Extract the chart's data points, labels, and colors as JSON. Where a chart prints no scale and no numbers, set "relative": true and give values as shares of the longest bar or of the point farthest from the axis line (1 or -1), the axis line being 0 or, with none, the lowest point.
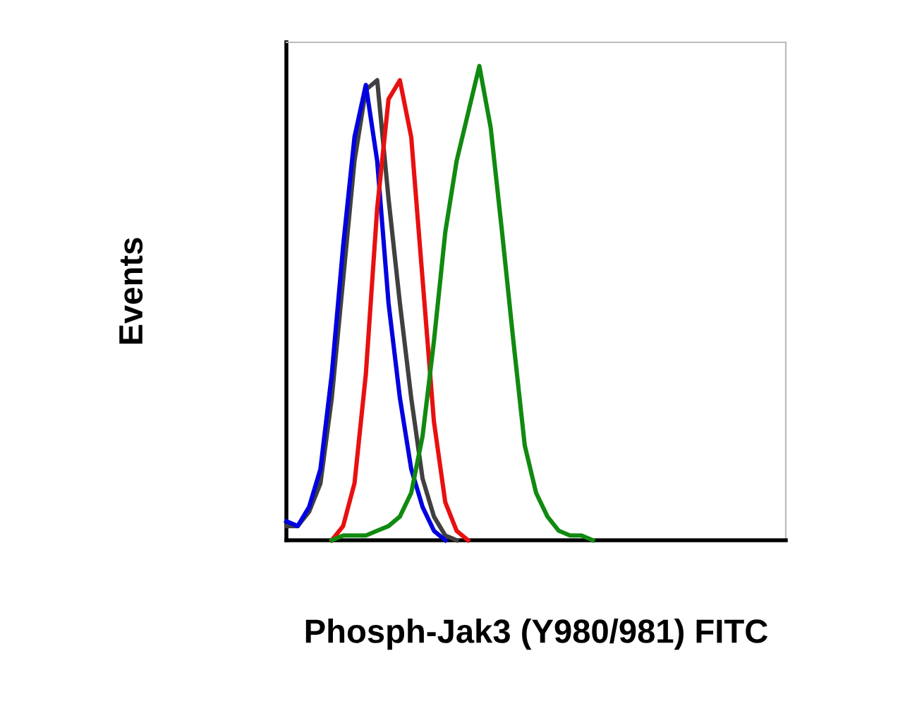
{
  "chart_data": {
    "type": "line",
    "relative": true,
    "xlabel": "Phosph-Jak3 (Y980/981) FITC",
    "ylabel": "Events",
    "grid": false,
    "legend": false,
    "marker": "none",
    "line_style": "solid",
    "tick_labels": false,
    "categories": [
      null,
      null,
      null,
      null,
      null,
      null,
      null,
      null,
      null,
      null,
      null,
      null,
      null,
      null,
      null,
      null,
      null,
      null,
      null,
      null,
      null,
      null,
      null,
      null,
      null,
      null,
      null,
      null,
      null,
      null,
      null,
      null,
      null,
      null,
      null,
      null,
      null,
      null,
      null,
      null,
      null,
      null,
      null,
      null,
      null
    ],
    "series": [
      {
        "color": "#404040",
        "values": [
          0.03,
          0.03,
          0.06,
          0.12,
          0.3,
          0.55,
          0.8,
          0.95,
          0.97,
          0.72,
          0.5,
          0.3,
          0.13,
          0.05,
          0.01,
          0,
          null,
          null,
          null,
          null,
          null,
          null,
          null,
          null,
          null,
          null,
          null,
          null,
          null,
          null,
          null,
          null,
          null,
          null,
          null,
          null,
          null,
          null,
          null,
          null,
          null,
          null,
          null,
          null,
          null
        ]
      },
      {
        "color": "#0000e0",
        "values": [
          0.04,
          0.03,
          0.07,
          0.15,
          0.35,
          0.62,
          0.85,
          0.96,
          0.8,
          0.5,
          0.3,
          0.15,
          0.07,
          0.02,
          0,
          null,
          null,
          null,
          null,
          null,
          null,
          null,
          null,
          null,
          null,
          null,
          null,
          null,
          null,
          null,
          null,
          null,
          null,
          null,
          null,
          null,
          null,
          null,
          null,
          null,
          null,
          null,
          null,
          null,
          null
        ]
      },
      {
        "color": "#e81010",
        "values": [
          null,
          null,
          null,
          null,
          0,
          0.03,
          0.12,
          0.35,
          0.7,
          0.93,
          0.97,
          0.85,
          0.55,
          0.25,
          0.08,
          0.02,
          0,
          null,
          null,
          null,
          null,
          null,
          null,
          null,
          null,
          null,
          null,
          null,
          null,
          null,
          null,
          null,
          null,
          null,
          null,
          null,
          null,
          null,
          null,
          null,
          null,
          null,
          null,
          null,
          null
        ]
      },
      {
        "color": "#108a10",
        "values": [
          null,
          null,
          null,
          null,
          0,
          0.01,
          0.01,
          0.01,
          0.02,
          0.03,
          0.05,
          0.1,
          0.22,
          0.42,
          0.65,
          0.8,
          0.9,
          1.0,
          0.87,
          0.65,
          0.42,
          0.2,
          0.1,
          0.05,
          0.02,
          0.01,
          0.01,
          0,
          null,
          null,
          null,
          null,
          null,
          null,
          null,
          null,
          null,
          null,
          null,
          null,
          null,
          null,
          null,
          null,
          null
        ]
      }
    ]
  }
}
